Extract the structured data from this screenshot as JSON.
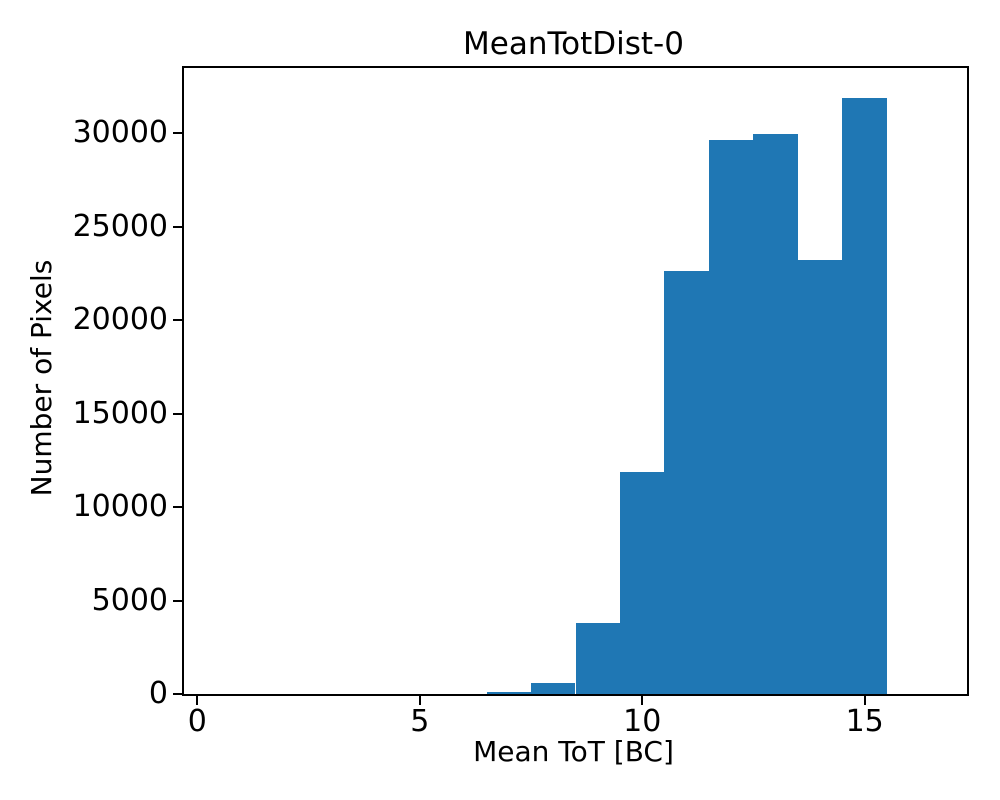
{
  "figure": {
    "background": "#ffffff",
    "text_color": "#000000",
    "spine_color": "#000000"
  },
  "chart_data": {
    "type": "bar",
    "subtype": "histogram",
    "title": "MeanTotDist-0",
    "xlabel": "Mean ToT [BC]",
    "ylabel": "Number of Pixels",
    "bar_color": "#1f77b4",
    "bin_edges": [
      6.5,
      7.5,
      8.5,
      9.5,
      10.5,
      11.5,
      12.5,
      13.5,
      14.5,
      15.5
    ],
    "bin_centers": [
      7,
      8,
      9,
      10,
      11,
      12,
      13,
      14,
      15
    ],
    "counts": [
      110,
      600,
      3800,
      11900,
      22650,
      29650,
      29950,
      23250,
      31880
    ],
    "xlim": [
      -0.3,
      17.3
    ],
    "ylim": [
      0,
      33500
    ],
    "xticks": [
      0,
      5,
      10,
      15
    ],
    "yticks": [
      0,
      5000,
      10000,
      15000,
      20000,
      25000,
      30000
    ],
    "grid": false,
    "legend": null
  }
}
